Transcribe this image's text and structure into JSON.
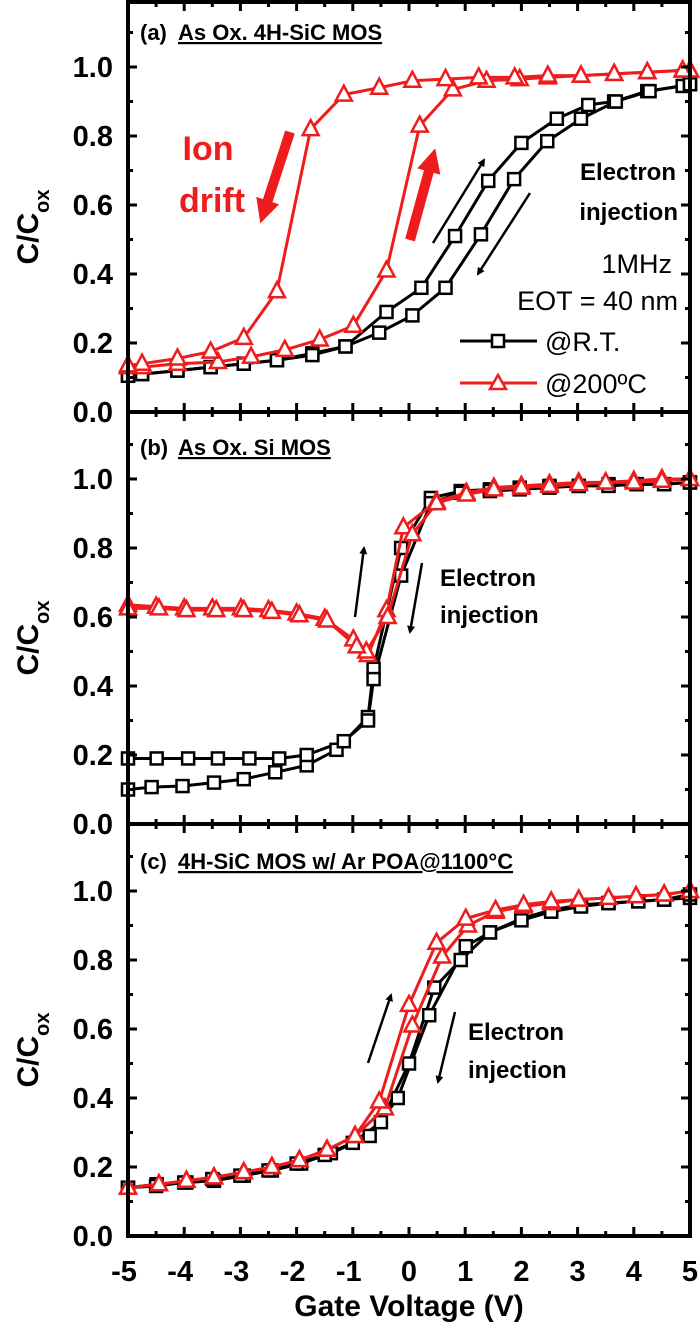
{
  "colors": {
    "rt": "#000000",
    "hot": "#ee1c1c"
  },
  "legend": {
    "rt": "@R.T.",
    "hot": "@200ºC",
    "placement": "inside right, panel a"
  },
  "xlabel": "Gate Voltage (V)",
  "ylabel_main": "C/C",
  "ylabel_sub": "ox",
  "chart_data": [
    {
      "type": "line",
      "panel_prefix": "(a)",
      "title": "As Ox. 4H-SiC MOS",
      "xlim": [
        -5,
        5
      ],
      "ylim": [
        0,
        1.2
      ],
      "xticks": [
        "-5",
        "-4",
        "-3",
        "-2",
        "-1",
        "0",
        "1",
        "2",
        "3",
        "4",
        "5"
      ],
      "yticks": [
        "0.0",
        "0.2",
        "0.4",
        "0.6",
        "0.8",
        "1.0"
      ],
      "annotations": {
        "ion1": "Ion",
        "ion2": "drift",
        "e1": "Electron",
        "e2": "injection",
        "freq": "1MHz",
        "eot": "EOT = 40 nm"
      },
      "series": [
        {
          "name": "@R.T.",
          "marker": "square",
          "sweeps": [
            {
              "x": [
                -5,
                -4.75,
                -4.12,
                -3.53,
                -2.94,
                -2.35,
                -1.72,
                -1.13,
                -0.4,
                0.22,
                0.82,
                1.41,
                2.0,
                2.63,
                3.19,
                3.65,
                4.24,
                4.87,
                5
              ],
              "y": [
                0.105,
                0.11,
                0.12,
                0.13,
                0.14,
                0.15,
                0.17,
                0.19,
                0.29,
                0.36,
                0.51,
                0.67,
                0.78,
                0.85,
                0.89,
                0.9,
                0.93,
                0.945,
                0.95
              ]
            },
            {
              "x": [
                5,
                4.28,
                3.68,
                3.06,
                2.46,
                1.87,
                1.28,
                0.65,
                0.06,
                -0.53,
                -1.13,
                -1.72,
                -2.35,
                -2.94,
                -3.53,
                -4.12,
                -4.75,
                -5
              ],
              "y": [
                0.95,
                0.93,
                0.9,
                0.85,
                0.785,
                0.675,
                0.515,
                0.36,
                0.28,
                0.23,
                0.19,
                0.165,
                0.15,
                0.14,
                0.13,
                0.12,
                0.11,
                0.105
              ]
            }
          ]
        },
        {
          "name": "@200ºC",
          "marker": "triangle",
          "sweeps": [
            {
              "x": [
                -5,
                -4.75,
                -4.12,
                -3.4,
                -2.81,
                -2.21,
                -1.59,
                -0.99,
                -0.4,
                0.19,
                0.78,
                1.38,
                1.97,
                2.47,
                3.06,
                3.65,
                4.24,
                4.87,
                5
              ],
              "y": [
                0.13,
                0.13,
                0.14,
                0.145,
                0.16,
                0.18,
                0.21,
                0.25,
                0.41,
                0.83,
                0.935,
                0.96,
                0.965,
                0.97,
                0.975,
                0.98,
                0.985,
                0.99,
                0.99
              ]
            },
            {
              "x": [
                5,
                4.87,
                4.24,
                3.65,
                3.06,
                2.47,
                1.88,
                1.24,
                0.65,
                0.06,
                -0.53,
                -1.16,
                -1.75,
                -2.35,
                -2.94,
                -3.53,
                -4.12,
                -4.75,
                -5
              ],
              "y": [
                0.99,
                0.99,
                0.985,
                0.98,
                0.975,
                0.975,
                0.97,
                0.97,
                0.965,
                0.96,
                0.94,
                0.92,
                0.82,
                0.35,
                0.215,
                0.175,
                0.155,
                0.14,
                0.135
              ]
            }
          ]
        }
      ]
    },
    {
      "type": "line",
      "panel_prefix": "(b)",
      "title": "As Ox. Si MOS",
      "xlim": [
        -5,
        5
      ],
      "ylim": [
        0,
        1.2
      ],
      "yticks": [
        "0.0",
        "0.2",
        "0.4",
        "0.6",
        "0.8",
        "1.0"
      ],
      "annotations": {
        "e1": "Electron",
        "e2": "injection"
      },
      "series": [
        {
          "name": "@R.T.",
          "marker": "square",
          "sweeps": [
            {
              "x": [
                -5,
                -4.58,
                -4.03,
                -3.47,
                -2.94,
                -2.38,
                -1.82,
                -1.29,
                -0.73,
                -0.63,
                -0.14,
                0.39,
                0.92,
                1.44,
                1.97,
                2.5,
                3.02,
                3.55,
                4.05,
                4.54,
                5
              ],
              "y": [
                0.1,
                0.107,
                0.11,
                0.12,
                0.13,
                0.15,
                0.17,
                0.215,
                0.31,
                0.45,
                0.8,
                0.945,
                0.965,
                0.97,
                0.975,
                0.98,
                0.98,
                0.985,
                0.985,
                0.985,
                0.99
              ]
            },
            {
              "x": [
                5,
                4.54,
                4.05,
                3.55,
                3.02,
                2.5,
                1.97,
                1.44,
                0.92,
                0.39,
                -0.14,
                -0.63,
                -0.73,
                -1.16,
                -1.82,
                -2.31,
                -2.84,
                -3.4,
                -3.93,
                -4.49,
                -5
              ],
              "y": [
                0.99,
                0.985,
                0.985,
                0.98,
                0.98,
                0.975,
                0.97,
                0.965,
                0.96,
                0.93,
                0.72,
                0.42,
                0.3,
                0.24,
                0.2,
                0.19,
                0.19,
                0.19,
                0.19,
                0.19,
                0.19
              ]
            }
          ]
        },
        {
          "name": "@200ºC",
          "marker": "triangle",
          "sweeps": [
            {
              "x": [
                -5,
                -4.5,
                -4.0,
                -3.5,
                -2.99,
                -2.5,
                -2.0,
                -1.5,
                -0.99,
                -0.73,
                -0.4,
                -0.1,
                0.49,
                1.02,
                1.51,
                2.0,
                2.5,
                3.02,
                3.5,
                4.0,
                4.5,
                5
              ],
              "y": [
                0.635,
                0.63,
                0.625,
                0.625,
                0.625,
                0.62,
                0.61,
                0.595,
                0.535,
                0.49,
                0.62,
                0.86,
                0.935,
                0.96,
                0.975,
                0.98,
                0.985,
                0.99,
                0.99,
                0.995,
                1.0,
                1.0
              ]
            },
            {
              "x": [
                5,
                4.5,
                4.0,
                3.5,
                3.02,
                2.5,
                2.0,
                1.51,
                1.02,
                0.49,
                0.06,
                -0.38,
                -0.76,
                -0.93,
                -1.46,
                -1.95,
                -2.44,
                -2.94,
                -3.43,
                -3.96,
                -4.45,
                -5
              ],
              "y": [
                1.0,
                0.995,
                0.99,
                0.99,
                0.985,
                0.98,
                0.975,
                0.97,
                0.955,
                0.93,
                0.84,
                0.6,
                0.5,
                0.515,
                0.59,
                0.605,
                0.615,
                0.62,
                0.62,
                0.62,
                0.625,
                0.625
              ]
            }
          ]
        }
      ]
    },
    {
      "type": "line",
      "panel_prefix": "(c)",
      "title": "4H-SiC MOS w/ Ar POA@1100°C",
      "xlim": [
        -5,
        5
      ],
      "ylim": [
        0,
        1.2
      ],
      "xticks": [
        "-5",
        "-4",
        "-3",
        "-2",
        "-1",
        "0",
        "1",
        "2",
        "3",
        "4",
        "5"
      ],
      "yticks": [
        "0.0",
        "0.2",
        "0.4",
        "0.6",
        "0.8",
        "1.0"
      ],
      "annotations": {
        "e1": "Electron",
        "e2": "injection"
      },
      "series": [
        {
          "name": "@R.T.",
          "marker": "square",
          "sweeps": [
            {
              "x": [
                -5,
                -4.49,
                -3.96,
                -3.47,
                -2.94,
                -2.44,
                -1.92,
                -1.39,
                -0.7,
                -0.2,
                0.36,
                1.01,
                1.44,
                2.0,
                2.53,
                3.06,
                3.55,
                4.08,
                4.54,
                5
              ],
              "y": [
                0.14,
                0.15,
                0.155,
                0.16,
                0.175,
                0.19,
                0.21,
                0.24,
                0.29,
                0.4,
                0.64,
                0.84,
                0.88,
                0.92,
                0.945,
                0.96,
                0.965,
                0.97,
                0.975,
                0.98
              ]
            },
            {
              "x": [
                5,
                4.54,
                4.08,
                3.55,
                3.06,
                2.53,
                2.0,
                1.44,
                0.92,
                0.45,
                0.0,
                -0.5,
                -1.0,
                -1.5,
                -2.0,
                -2.5,
                -3.0,
                -3.5,
                -4.0,
                -4.5,
                -5
              ],
              "y": [
                0.99,
                0.975,
                0.97,
                0.965,
                0.955,
                0.94,
                0.915,
                0.88,
                0.8,
                0.72,
                0.5,
                0.33,
                0.27,
                0.235,
                0.21,
                0.19,
                0.175,
                0.165,
                0.155,
                0.145,
                0.14
              ]
            }
          ]
        },
        {
          "name": "@200ºC",
          "marker": "triangle",
          "sweeps": [
            {
              "x": [
                -5,
                -4.45,
                -3.96,
                -3.47,
                -2.94,
                -2.44,
                -1.95,
                -1.46,
                -0.96,
                -0.43,
                0.06,
                0.59,
                1.05,
                1.54,
                2.04,
                2.53,
                3.02,
                3.55,
                4.04,
                4.54,
                5
              ],
              "y": [
                0.14,
                0.15,
                0.16,
                0.17,
                0.185,
                0.2,
                0.22,
                0.25,
                0.29,
                0.37,
                0.61,
                0.81,
                0.9,
                0.94,
                0.955,
                0.965,
                0.975,
                0.98,
                0.985,
                0.99,
                1.0
              ]
            },
            {
              "x": [
                5,
                4.54,
                4.04,
                3.55,
                3.02,
                2.53,
                2.04,
                1.54,
                1.01,
                0.49,
                0.0,
                -0.53,
                -0.96,
                -1.46,
                -1.95,
                -2.44,
                -2.94,
                -3.47,
                -3.96,
                -4.45,
                -5
              ],
              "y": [
                1.0,
                0.99,
                0.985,
                0.98,
                0.975,
                0.97,
                0.96,
                0.945,
                0.92,
                0.85,
                0.67,
                0.39,
                0.29,
                0.25,
                0.22,
                0.2,
                0.185,
                0.17,
                0.16,
                0.15,
                0.14
              ]
            }
          ]
        }
      ]
    }
  ]
}
